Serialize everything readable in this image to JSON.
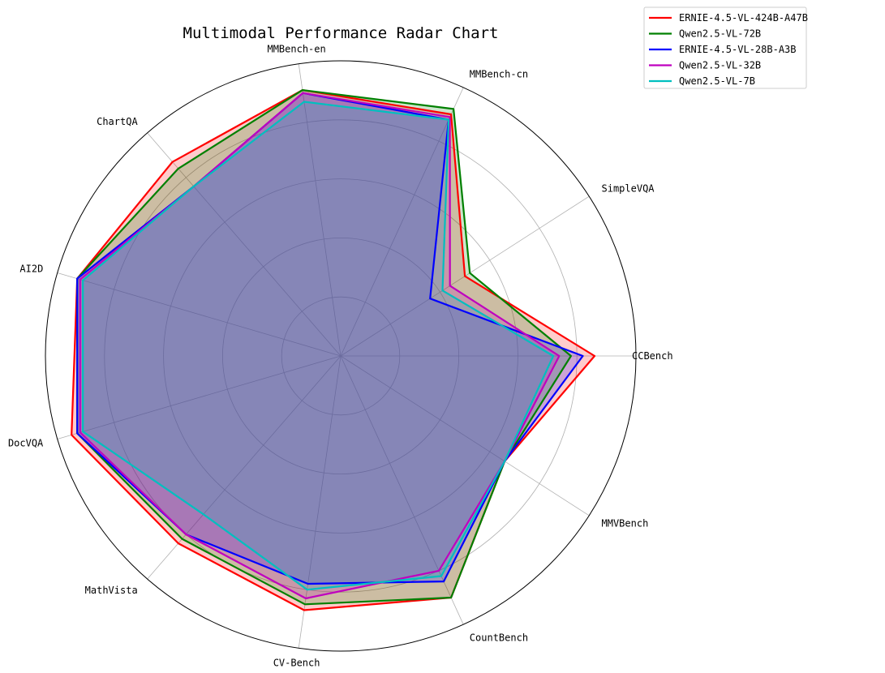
{
  "chart_data": {
    "type": "radar",
    "title": "Multimodal Performance Radar Chart",
    "categories": [
      "CCBench",
      "SimpleVQA",
      "MMBench-cn",
      "MMBench-en",
      "ChartQA",
      "AI2D",
      "DocVQA",
      "MathVista",
      "CV-Bench",
      "CountBench",
      "MMVBench"
    ],
    "rlim": [
      0,
      100
    ],
    "r_ticks": [
      20,
      40,
      60,
      80
    ],
    "series": [
      {
        "name": "ERNIE-4.5-VL-424B-A47B",
        "color": "#ff0000",
        "values": [
          86,
          50,
          90,
          91,
          87,
          93,
          95,
          84,
          87,
          90,
          66
        ]
      },
      {
        "name": "Qwen2.5-VL-72B",
        "color": "#008000",
        "values": [
          78,
          52,
          92,
          91,
          84,
          93,
          93,
          82,
          85,
          90,
          66
        ]
      },
      {
        "name": "ERNIE-4.5-VL-28B-A3B",
        "color": "#0000ff",
        "values": [
          82,
          36,
          88,
          90,
          76,
          93,
          93,
          80,
          78,
          84,
          66
        ]
      },
      {
        "name": "Qwen2.5-VL-32B",
        "color": "#bf00bf",
        "values": [
          74,
          44,
          89,
          90,
          76,
          92,
          92,
          80,
          83,
          80,
          66
        ]
      },
      {
        "name": "Qwen2.5-VL-7B",
        "color": "#00bfbf",
        "values": [
          72,
          41,
          88,
          87,
          76,
          91,
          91,
          71,
          80,
          82,
          66
        ]
      }
    ],
    "legend_position": "top-right"
  }
}
